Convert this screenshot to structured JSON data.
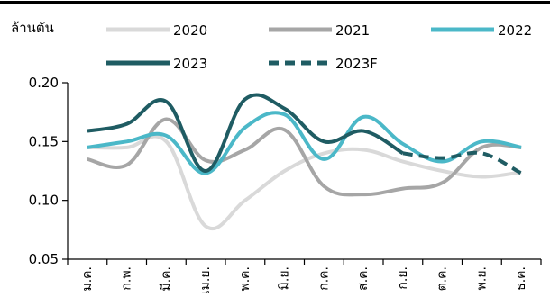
{
  "chart_data": {
    "type": "line",
    "ylabel": "ล้านตัน",
    "ylim": [
      0.05,
      0.2
    ],
    "yticks": [
      "0.05",
      "0.10",
      "0.15",
      "0.20"
    ],
    "categories": [
      "ม.ค.",
      "ก.พ.",
      "มี.ค.",
      "เม.ย.",
      "พ.ค.",
      "มิ.ย.",
      "ก.ค.",
      "ส.ค.",
      "ก.ย.",
      "ต.ค.",
      "พ.ย.",
      "ธ.ค."
    ],
    "legend_position": "top",
    "grid": false,
    "series": [
      {
        "name": "2020",
        "color": "#d9d9d9",
        "style": "solid",
        "values": [
          0.145,
          0.145,
          0.15,
          0.078,
          0.1,
          0.125,
          0.14,
          0.143,
          0.133,
          0.125,
          0.12,
          0.124
        ]
      },
      {
        "name": "2021",
        "color": "#a6a6a6",
        "style": "solid",
        "values": [
          0.135,
          0.13,
          0.169,
          0.134,
          0.143,
          0.16,
          0.112,
          0.105,
          0.11,
          0.115,
          0.145,
          0.145
        ]
      },
      {
        "name": "2022",
        "color": "#4bb8c8",
        "style": "solid",
        "values": [
          0.145,
          0.15,
          0.155,
          0.123,
          0.162,
          0.173,
          0.135,
          0.171,
          0.148,
          0.133,
          0.15,
          0.145
        ]
      },
      {
        "name": "2023",
        "color": "#1f5c63",
        "style": "solid",
        "values": [
          0.159,
          0.165,
          0.184,
          0.125,
          0.186,
          0.178,
          0.15,
          0.159,
          0.14,
          null,
          null,
          null
        ]
      },
      {
        "name": "2023F",
        "color": "#1f5c63",
        "style": "dashed",
        "values": [
          null,
          null,
          null,
          null,
          null,
          null,
          null,
          null,
          0.14,
          0.136,
          0.14,
          0.123
        ]
      }
    ]
  }
}
